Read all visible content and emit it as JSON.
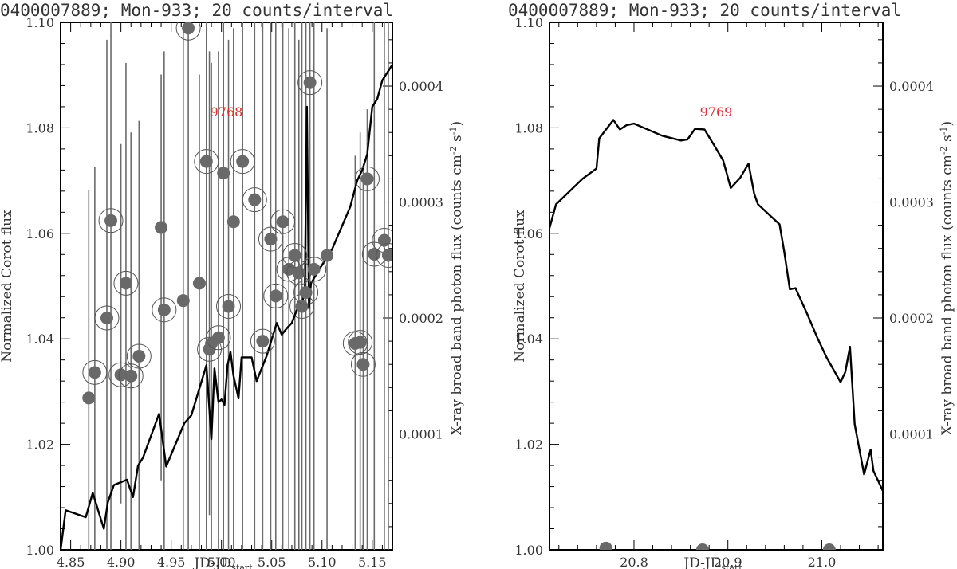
{
  "chart_data": [
    {
      "type": "line",
      "title": "0400007889; Mon-933; 20 counts/interval",
      "xlabel": "JD-JD",
      "xlabel_sub": "start",
      "ylabel_left": "Normalized Corot flux",
      "ylabel_right": "X-ray broad band photon flux (counts cm",
      "ylabel_right_sup1": "-2",
      "ylabel_right_mid": " s",
      "ylabel_right_sup2": "-1",
      "ylabel_right_end": ")",
      "annotation": "9768",
      "annotation_color": "#e0302a",
      "xlim": [
        4.84,
        5.17
      ],
      "ylim_left": [
        1.0,
        1.1
      ],
      "ylim_right": [
        0.0,
        0.000455
      ],
      "x_ticks": [
        4.85,
        4.9,
        4.95,
        5.0,
        5.05,
        5.1,
        5.15
      ],
      "x_tick_labels": [
        "4.85",
        "4.90",
        "4.95",
        "5.00",
        "5.05",
        "5.10",
        "5.15"
      ],
      "y_ticks_left": [
        1.0,
        1.02,
        1.04,
        1.06,
        1.08,
        1.1
      ],
      "y_tick_labels_left": [
        "1.00",
        "1.02",
        "1.04",
        "1.06",
        "1.08",
        "1.10"
      ],
      "y_ticks_right": [
        0.0001,
        0.0002,
        0.0003,
        0.0004
      ],
      "y_tick_labels_right": [
        "0.0001",
        "0.0002",
        "0.0003",
        "0.0004"
      ],
      "line_series": {
        "x": [
          4.84,
          4.845,
          4.865,
          4.872,
          4.883,
          4.887,
          4.893,
          4.906,
          4.912,
          4.917,
          4.922,
          4.938,
          4.945,
          4.963,
          4.97,
          4.985,
          4.99,
          4.993,
          4.997,
          5.0,
          5.003,
          5.006,
          5.009,
          5.012,
          5.017,
          5.02,
          5.025,
          5.03,
          5.035,
          5.045,
          5.055,
          5.06,
          5.065,
          5.07,
          5.075,
          5.08,
          5.083,
          5.085,
          5.087,
          5.089,
          5.095,
          5.11,
          5.128,
          5.135,
          5.14,
          5.145,
          5.15,
          5.155,
          5.16,
          5.17
        ],
        "y": [
          1.0,
          1.0075,
          1.0062,
          1.0108,
          1.004,
          1.009,
          1.0123,
          1.0133,
          1.01,
          1.016,
          1.0175,
          1.0258,
          1.0158,
          1.024,
          1.0255,
          1.035,
          1.021,
          1.0344,
          1.028,
          1.0285,
          1.0275,
          1.035,
          1.0375,
          1.033,
          1.0287,
          1.0365,
          1.0365,
          1.0365,
          1.032,
          1.0368,
          1.043,
          1.0408,
          1.042,
          1.043,
          1.0455,
          1.046,
          1.05,
          1.084,
          1.0458,
          1.0505,
          1.0525,
          1.057,
          1.065,
          1.07,
          1.072,
          1.075,
          1.084,
          1.0855,
          1.089,
          1.092
        ]
      },
      "xray_points": {
        "x": [
          4.868,
          4.874,
          4.886,
          4.89,
          4.9,
          4.905,
          4.91,
          4.918,
          4.94,
          4.943,
          4.962,
          4.967,
          4.978,
          4.985,
          4.988,
          4.99,
          4.997,
          5.002,
          5.007,
          5.012,
          5.021,
          5.033,
          5.041,
          5.049,
          5.054,
          5.061,
          5.067,
          5.073,
          5.077,
          5.08,
          5.084,
          5.088,
          5.092,
          5.105,
          5.133,
          5.138,
          5.141,
          5.145,
          5.152,
          5.162,
          5.166
        ],
        "y": [
          0.000131,
          0.000153,
          0.0002,
          0.000284,
          0.000151,
          0.00023,
          0.00015,
          0.000167,
          0.000278,
          0.000207,
          0.000215,
          0.00045,
          0.00023,
          0.000335,
          0.000173,
          0.000178,
          0.000183,
          0.000325,
          0.00021,
          0.000283,
          0.000335,
          0.000302,
          0.00018,
          0.000268,
          0.000219,
          0.000283,
          0.000242,
          0.000254,
          0.000239,
          0.00021,
          0.000222,
          0.000403,
          0.000242,
          0.000254,
          0.000178,
          0.000179,
          0.00016,
          0.00032,
          0.000255,
          0.000267,
          0.000254
        ],
        "err_high": [
          0.00031,
          0.00033,
          0.00044,
          0.00048,
          0.00035,
          0.00042,
          0.00036,
          0.00037,
          0.00041,
          0.00043,
          0.00045,
          0.00046,
          0.00041,
          0.00046,
          0.00043,
          0.00042,
          0.00043,
          0.00046,
          0.00044,
          0.00045,
          0.00046,
          0.00046,
          0.00046,
          0.00046,
          0.00046,
          0.00046,
          0.00045,
          0.00046,
          0.00044,
          0.00046,
          0.00046,
          0.00046,
          0.00046,
          0.00045,
          0.00034,
          0.00036,
          0.00033,
          0.00038,
          0.00046,
          0.00046,
          0.00046
        ],
        "err_low": [
          0.0,
          0.0,
          0.0,
          0.0,
          4e-05,
          0.0,
          0.0,
          0.0,
          6e-05,
          0.0,
          0.0,
          0.0,
          0.0,
          0.0,
          3e-05,
          0.0,
          0.0,
          0.0,
          0.0,
          0.0,
          0.0,
          0.0,
          0.0,
          0.0,
          0.0,
          0.0,
          0.0,
          0.0,
          0.0,
          0.0,
          0.0,
          0.0,
          0.0,
          0.0,
          0.0,
          0.0,
          0.0,
          0.0,
          0.0,
          0.0,
          0.0
        ],
        "circled": [
          false,
          true,
          true,
          true,
          true,
          true,
          true,
          true,
          false,
          true,
          false,
          true,
          false,
          true,
          true,
          false,
          true,
          false,
          true,
          false,
          true,
          true,
          true,
          true,
          true,
          true,
          true,
          true,
          true,
          true,
          true,
          true,
          true,
          false,
          true,
          true,
          true,
          true,
          true,
          true,
          true
        ]
      }
    },
    {
      "type": "line",
      "title": "0400007889; Mon-933; 20 counts/interval",
      "xlabel": "JD-JD",
      "xlabel_sub": "start",
      "ylabel_left": "Normalized Corot flux",
      "ylabel_right": "X-ray broad band photon flux (counts cm",
      "ylabel_right_sup1": "-2",
      "ylabel_right_mid": " s",
      "ylabel_right_sup2": "-1",
      "ylabel_right_end": ")",
      "annotation": "9769",
      "annotation_color": "#e0302a",
      "xlim": [
        20.71,
        21.065
      ],
      "ylim_left": [
        1.0,
        1.1
      ],
      "ylim_right": [
        0.0,
        0.000455
      ],
      "x_ticks": [
        20.8,
        20.9,
        21.0
      ],
      "x_tick_labels": [
        "20.8",
        "20.9",
        "21.0"
      ],
      "y_ticks_left": [
        1.0,
        1.02,
        1.04,
        1.06,
        1.08,
        1.1
      ],
      "y_tick_labels_left": [
        "1.00",
        "1.02",
        "1.04",
        "1.06",
        "1.08",
        "1.10"
      ],
      "y_ticks_right": [
        0.0001,
        0.0002,
        0.0003,
        0.0004
      ],
      "y_tick_labels_right": [
        "0.0001",
        "0.0002",
        "0.0003",
        "0.0004"
      ],
      "line_series": {
        "x": [
          20.71,
          20.717,
          20.745,
          20.76,
          20.763,
          20.778,
          20.785,
          20.792,
          20.8,
          20.83,
          20.85,
          20.857,
          20.865,
          20.875,
          20.885,
          20.895,
          20.903,
          20.913,
          20.922,
          20.928,
          20.932,
          20.955,
          20.96,
          20.966,
          20.972,
          20.985,
          20.995,
          21.005,
          21.02,
          21.025,
          21.03,
          21.035,
          21.045,
          21.052,
          21.055,
          21.065
        ],
        "y": [
          1.061,
          1.0655,
          1.0703,
          1.0723,
          1.078,
          1.0815,
          1.0797,
          1.0805,
          1.0808,
          1.0785,
          1.0776,
          1.0778,
          1.0798,
          1.0797,
          1.0768,
          1.0738,
          1.0686,
          1.0705,
          1.0732,
          1.0675,
          1.0655,
          1.0617,
          1.0565,
          1.0494,
          1.0496,
          1.0445,
          1.0403,
          1.0365,
          1.0318,
          1.0337,
          1.0385,
          1.0238,
          1.0143,
          1.019,
          1.015,
          1.0112
        ]
      },
      "xray_points": {
        "x": [
          20.77,
          20.873,
          21.008
        ],
        "y": [
          1.5e-06,
          0.0,
          0.0
        ]
      }
    }
  ]
}
